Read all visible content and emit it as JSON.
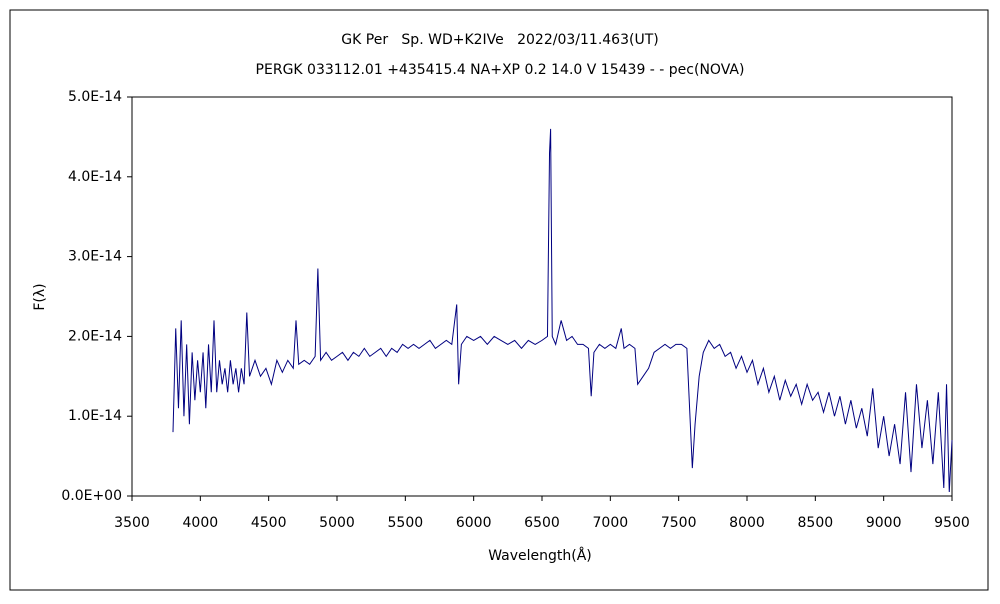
{
  "chart_data": {
    "type": "line",
    "title": "GK Per   Sp. WD+K2IVe   2022/03/11.463(UT)",
    "subtitle": "PERGK 033112.01 +435415.4 NA+XP 0.2 14.0 V 15439 - - pec(NOVA)",
    "x_label": "Wavelength(Å)",
    "y_label": "F(λ)",
    "xlim": [
      3500,
      9500
    ],
    "xticks": [
      3500,
      4000,
      4500,
      5000,
      5500,
      6000,
      6500,
      7000,
      7500,
      8000,
      8500,
      9000,
      9500
    ],
    "ylim": [
      0,
      5e-14
    ],
    "yticks": [
      {
        "value": 0,
        "label": "0.0E+00"
      },
      {
        "value": 1e-14,
        "label": "1.0E-14"
      },
      {
        "value": 2e-14,
        "label": "2.0E-14"
      },
      {
        "value": 3e-14,
        "label": "3.0E-14"
      },
      {
        "value": 4e-14,
        "label": "4.0E-14"
      },
      {
        "value": 5e-14,
        "label": "5.0E-14"
      }
    ],
    "grid": false,
    "x": [
      3800,
      3820,
      3840,
      3860,
      3880,
      3900,
      3920,
      3940,
      3960,
      3980,
      4000,
      4020,
      4040,
      4060,
      4080,
      4100,
      4120,
      4140,
      4160,
      4180,
      4200,
      4220,
      4240,
      4260,
      4280,
      4300,
      4320,
      4340,
      4360,
      4400,
      4440,
      4480,
      4520,
      4560,
      4600,
      4640,
      4680,
      4700,
      4720,
      4760,
      4800,
      4840,
      4860,
      4880,
      4920,
      4960,
      5000,
      5040,
      5080,
      5120,
      5160,
      5200,
      5240,
      5280,
      5320,
      5360,
      5400,
      5440,
      5480,
      5520,
      5560,
      5600,
      5640,
      5680,
      5720,
      5760,
      5800,
      5840,
      5876,
      5890,
      5910,
      5950,
      6000,
      6050,
      6100,
      6150,
      6200,
      6250,
      6300,
      6350,
      6400,
      6450,
      6500,
      6540,
      6555,
      6563,
      6575,
      6600,
      6640,
      6680,
      6720,
      6760,
      6800,
      6840,
      6860,
      6880,
      6920,
      6960,
      7000,
      7040,
      7080,
      7100,
      7140,
      7180,
      7200,
      7240,
      7280,
      7320,
      7360,
      7400,
      7440,
      7480,
      7520,
      7560,
      7600,
      7620,
      7650,
      7680,
      7720,
      7760,
      7800,
      7840,
      7880,
      7920,
      7960,
      8000,
      8040,
      8080,
      8120,
      8160,
      8200,
      8240,
      8280,
      8320,
      8360,
      8400,
      8440,
      8480,
      8520,
      8560,
      8600,
      8640,
      8680,
      8720,
      8760,
      8800,
      8840,
      8880,
      8920,
      8960,
      9000,
      9040,
      9080,
      9120,
      9160,
      9200,
      9240,
      9280,
      9320,
      9360,
      9400,
      9440,
      9460,
      9480,
      9500
    ],
    "series": [
      {
        "color": "#000080",
        "values": [
          8e-15,
          2.1e-14,
          1.1e-14,
          2.2e-14,
          1e-14,
          1.9e-14,
          9e-15,
          1.8e-14,
          1.2e-14,
          1.7e-14,
          1.3e-14,
          1.8e-14,
          1.1e-14,
          1.9e-14,
          1.3e-14,
          2.2e-14,
          1.3e-14,
          1.7e-14,
          1.4e-14,
          1.6e-14,
          1.3e-14,
          1.7e-14,
          1.4e-14,
          1.6e-14,
          1.3e-14,
          1.6e-14,
          1.4e-14,
          2.3e-14,
          1.5e-14,
          1.7e-14,
          1.5e-14,
          1.6e-14,
          1.4e-14,
          1.7e-14,
          1.55e-14,
          1.7e-14,
          1.6e-14,
          2.2e-14,
          1.65e-14,
          1.7e-14,
          1.65e-14,
          1.75e-14,
          2.85e-14,
          1.7e-14,
          1.8e-14,
          1.7e-14,
          1.75e-14,
          1.8e-14,
          1.7e-14,
          1.8e-14,
          1.75e-14,
          1.85e-14,
          1.75e-14,
          1.8e-14,
          1.85e-14,
          1.75e-14,
          1.85e-14,
          1.8e-14,
          1.9e-14,
          1.85e-14,
          1.9e-14,
          1.85e-14,
          1.9e-14,
          1.95e-14,
          1.85e-14,
          1.9e-14,
          1.95e-14,
          1.9e-14,
          2.4e-14,
          1.4e-14,
          1.9e-14,
          2e-14,
          1.95e-14,
          2e-14,
          1.9e-14,
          2e-14,
          1.95e-14,
          1.9e-14,
          1.95e-14,
          1.85e-14,
          1.95e-14,
          1.9e-14,
          1.95e-14,
          2e-14,
          4.3e-14,
          4.6e-14,
          2e-14,
          1.9e-14,
          2.2e-14,
          1.95e-14,
          2e-14,
          1.9e-14,
          1.9e-14,
          1.85e-14,
          1.25e-14,
          1.8e-14,
          1.9e-14,
          1.85e-14,
          1.9e-14,
          1.85e-14,
          2.1e-14,
          1.85e-14,
          1.9e-14,
          1.85e-14,
          1.4e-14,
          1.5e-14,
          1.6e-14,
          1.8e-14,
          1.85e-14,
          1.9e-14,
          1.85e-14,
          1.9e-14,
          1.9e-14,
          1.85e-14,
          3.5e-15,
          9e-15,
          1.5e-14,
          1.8e-14,
          1.95e-14,
          1.85e-14,
          1.9e-14,
          1.75e-14,
          1.8e-14,
          1.6e-14,
          1.75e-14,
          1.55e-14,
          1.7e-14,
          1.4e-14,
          1.6e-14,
          1.3e-14,
          1.5e-14,
          1.2e-14,
          1.45e-14,
          1.25e-14,
          1.4e-14,
          1.15e-14,
          1.4e-14,
          1.2e-14,
          1.3e-14,
          1.05e-14,
          1.3e-14,
          1e-14,
          1.25e-14,
          9e-15,
          1.2e-14,
          8.5e-15,
          1.1e-14,
          7.5e-15,
          1.35e-14,
          6e-15,
          1e-14,
          5e-15,
          9e-15,
          4e-15,
          1.3e-14,
          3e-15,
          1.4e-14,
          6e-15,
          1.2e-14,
          4e-15,
          1.3e-14,
          1e-15,
          1.4e-14,
          5e-16,
          7e-15
        ]
      }
    ]
  }
}
